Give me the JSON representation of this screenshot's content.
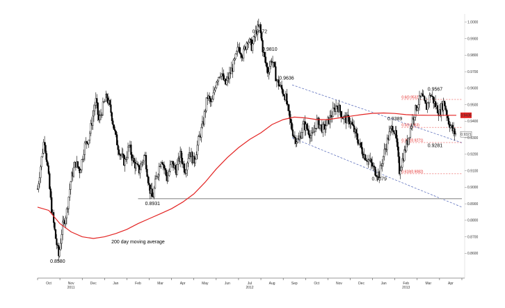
{
  "chart_data": {
    "type": "candlestick",
    "title": "",
    "xlabel": "",
    "ylabel": "",
    "ylim": [
      0.845,
      1.005
    ],
    "x_ticks": [
      "Oct",
      "Nov",
      "Dec",
      "Jan",
      "Feb",
      "Mar",
      "Apr",
      "May",
      "Jun",
      "Jul",
      "Aug",
      "Sep",
      "Oct",
      "Nov",
      "Dec",
      "Jan",
      "Feb",
      "Mar",
      "Apr"
    ],
    "year_labels": [
      {
        "label": "2011",
        "month_index": 1
      },
      {
        "label": "2012",
        "month_index": 9
      },
      {
        "label": "2013",
        "month_index": 16
      }
    ],
    "y_ticks": [
      0.86,
      0.87,
      0.88,
      0.89,
      0.9,
      0.91,
      0.92,
      0.93,
      0.94,
      0.95,
      0.96,
      0.97,
      0.98,
      0.99,
      1.0
    ],
    "annotations": [
      {
        "text": "0.9972",
        "month": 9.95,
        "value": 0.9972
      },
      {
        "text": "0.9810",
        "month": 10.4,
        "value": 0.981
      },
      {
        "text": "0.9636",
        "month": 11.15,
        "value": 0.9636
      },
      {
        "text": "0.9567",
        "month": 17.8,
        "value": 0.9567
      },
      {
        "text": "0.9389",
        "month": 16.0,
        "value": 0.9389
      },
      {
        "text": "0.9281",
        "month": 17.8,
        "value": 0.9281
      },
      {
        "text": "0.9079",
        "month": 15.3,
        "value": 0.9079
      },
      {
        "text": "0.8931",
        "month": 5.15,
        "value": 0.8931
      },
      {
        "text": "0.8580",
        "month": 0.9,
        "value": 0.858
      },
      {
        "text": "200 day moving average",
        "month": 4.5,
        "value": 0.866,
        "color": "#e32322"
      }
    ],
    "fib_levels": [
      {
        "text": "0.6(0.9532)",
        "value": 0.9532
      },
      {
        "text": "0.5(0.9363)",
        "value": 0.9363
      },
      {
        "text": "0.382(0.9271)",
        "value": 0.9271
      },
      {
        "text": "0.618(0.9082)",
        "value": 0.9082
      }
    ],
    "current_price": {
      "text": "0.9436",
      "value": 0.9436,
      "color": "#e32322"
    },
    "price_tag": {
      "text": "0.9321",
      "value": 0.9321
    },
    "support_line": {
      "value": 0.8931,
      "from_month": 4.5,
      "to_month": 19.0
    },
    "channel": {
      "upper": [
        {
          "month": 11.4,
          "value": 0.962
        },
        {
          "month": 19.0,
          "value": 0.927
        }
      ],
      "lower": [
        {
          "month": 11.4,
          "value": 0.93
        },
        {
          "month": 19.0,
          "value": 0.888
        }
      ]
    },
    "series": [
      {
        "kind": "price",
        "values": [
          [
            0.0,
            0.899
          ],
          [
            0.3,
            0.93
          ],
          [
            0.45,
            0.912
          ],
          [
            0.6,
            0.89
          ],
          [
            0.8,
            0.87
          ],
          [
            0.95,
            0.858
          ],
          [
            1.1,
            0.875
          ],
          [
            1.3,
            0.885
          ],
          [
            1.5,
            0.905
          ],
          [
            1.7,
            0.915
          ],
          [
            1.9,
            0.91
          ],
          [
            2.1,
            0.925
          ],
          [
            2.3,
            0.93
          ],
          [
            2.5,
            0.945
          ],
          [
            2.6,
            0.953
          ],
          [
            2.75,
            0.94
          ],
          [
            2.95,
            0.95
          ],
          [
            3.1,
            0.955
          ],
          [
            3.3,
            0.945
          ],
          [
            3.5,
            0.93
          ],
          [
            3.7,
            0.92
          ],
          [
            3.9,
            0.915
          ],
          [
            4.1,
            0.925
          ],
          [
            4.3,
            0.915
          ],
          [
            4.55,
            0.91
          ],
          [
            4.8,
            0.92
          ],
          [
            5.0,
            0.9
          ],
          [
            5.15,
            0.8931
          ],
          [
            5.3,
            0.905
          ],
          [
            5.55,
            0.918
          ],
          [
            5.8,
            0.905
          ],
          [
            6.0,
            0.915
          ],
          [
            6.2,
            0.91
          ],
          [
            6.4,
            0.92
          ],
          [
            6.6,
            0.91
          ],
          [
            6.8,
            0.922
          ],
          [
            7.0,
            0.915
          ],
          [
            7.2,
            0.928
          ],
          [
            7.4,
            0.938
          ],
          [
            7.6,
            0.955
          ],
          [
            7.8,
            0.95
          ],
          [
            8.0,
            0.965
          ],
          [
            8.2,
            0.97
          ],
          [
            8.4,
            0.962
          ],
          [
            8.6,
            0.968
          ],
          [
            8.8,
            0.975
          ],
          [
            9.0,
            0.985
          ],
          [
            9.2,
            0.98
          ],
          [
            9.4,
            0.99
          ],
          [
            9.6,
            0.985
          ],
          [
            9.8,
            0.995
          ],
          [
            9.95,
            0.9972
          ],
          [
            10.1,
            0.982
          ],
          [
            10.3,
            0.97
          ],
          [
            10.5,
            0.978
          ],
          [
            10.7,
            0.965
          ],
          [
            10.9,
            0.96
          ],
          [
            11.1,
            0.955
          ],
          [
            11.3,
            0.94
          ],
          [
            11.5,
            0.93
          ],
          [
            11.7,
            0.928
          ],
          [
            11.9,
            0.938
          ],
          [
            12.1,
            0.935
          ],
          [
            12.3,
            0.93
          ],
          [
            12.5,
            0.94
          ],
          [
            12.8,
            0.935
          ],
          [
            13.1,
            0.942
          ],
          [
            13.4,
            0.95
          ],
          [
            13.7,
            0.942
          ],
          [
            14.0,
            0.94
          ],
          [
            14.3,
            0.93
          ],
          [
            14.6,
            0.92
          ],
          [
            14.9,
            0.915
          ],
          [
            15.1,
            0.91
          ],
          [
            15.3,
            0.9079
          ],
          [
            15.5,
            0.92
          ],
          [
            15.7,
            0.93
          ],
          [
            15.9,
            0.938
          ],
          [
            16.05,
            0.93
          ],
          [
            16.2,
            0.91
          ],
          [
            16.4,
            0.92
          ],
          [
            16.6,
            0.93
          ],
          [
            16.8,
            0.942
          ],
          [
            17.0,
            0.95
          ],
          [
            17.2,
            0.955
          ],
          [
            17.4,
            0.948
          ],
          [
            17.6,
            0.9567
          ],
          [
            17.8,
            0.95
          ],
          [
            18.0,
            0.945
          ],
          [
            18.2,
            0.952
          ],
          [
            18.4,
            0.94
          ],
          [
            18.6,
            0.934
          ],
          [
            18.75,
            0.9321
          ]
        ]
      },
      {
        "kind": "moving_average",
        "name": "200 day moving average",
        "color": "#e32322",
        "values": [
          [
            0.0,
            0.888
          ],
          [
            0.5,
            0.886
          ],
          [
            1.0,
            0.878
          ],
          [
            1.5,
            0.873
          ],
          [
            2.0,
            0.87
          ],
          [
            2.5,
            0.869
          ],
          [
            3.0,
            0.87
          ],
          [
            3.5,
            0.872
          ],
          [
            4.0,
            0.8745
          ],
          [
            4.5,
            0.878
          ],
          [
            5.0,
            0.881
          ],
          [
            5.5,
            0.884
          ],
          [
            6.0,
            0.887
          ],
          [
            6.5,
            0.891
          ],
          [
            7.0,
            0.896
          ],
          [
            7.5,
            0.903
          ],
          [
            8.0,
            0.911
          ],
          [
            8.5,
            0.918
          ],
          [
            9.0,
            0.924
          ],
          [
            9.5,
            0.929
          ],
          [
            10.0,
            0.933
          ],
          [
            10.5,
            0.938
          ],
          [
            11.0,
            0.941
          ],
          [
            11.5,
            0.9425
          ],
          [
            12.0,
            0.942
          ],
          [
            12.5,
            0.941
          ],
          [
            13.0,
            0.941
          ],
          [
            13.5,
            0.942
          ],
          [
            14.0,
            0.943
          ],
          [
            14.5,
            0.944
          ],
          [
            15.0,
            0.9448
          ],
          [
            15.5,
            0.945
          ],
          [
            16.0,
            0.9447
          ],
          [
            16.5,
            0.944
          ],
          [
            17.0,
            0.9437
          ],
          [
            17.5,
            0.9436
          ],
          [
            18.0,
            0.9436
          ],
          [
            18.75,
            0.9436
          ]
        ]
      }
    ]
  }
}
